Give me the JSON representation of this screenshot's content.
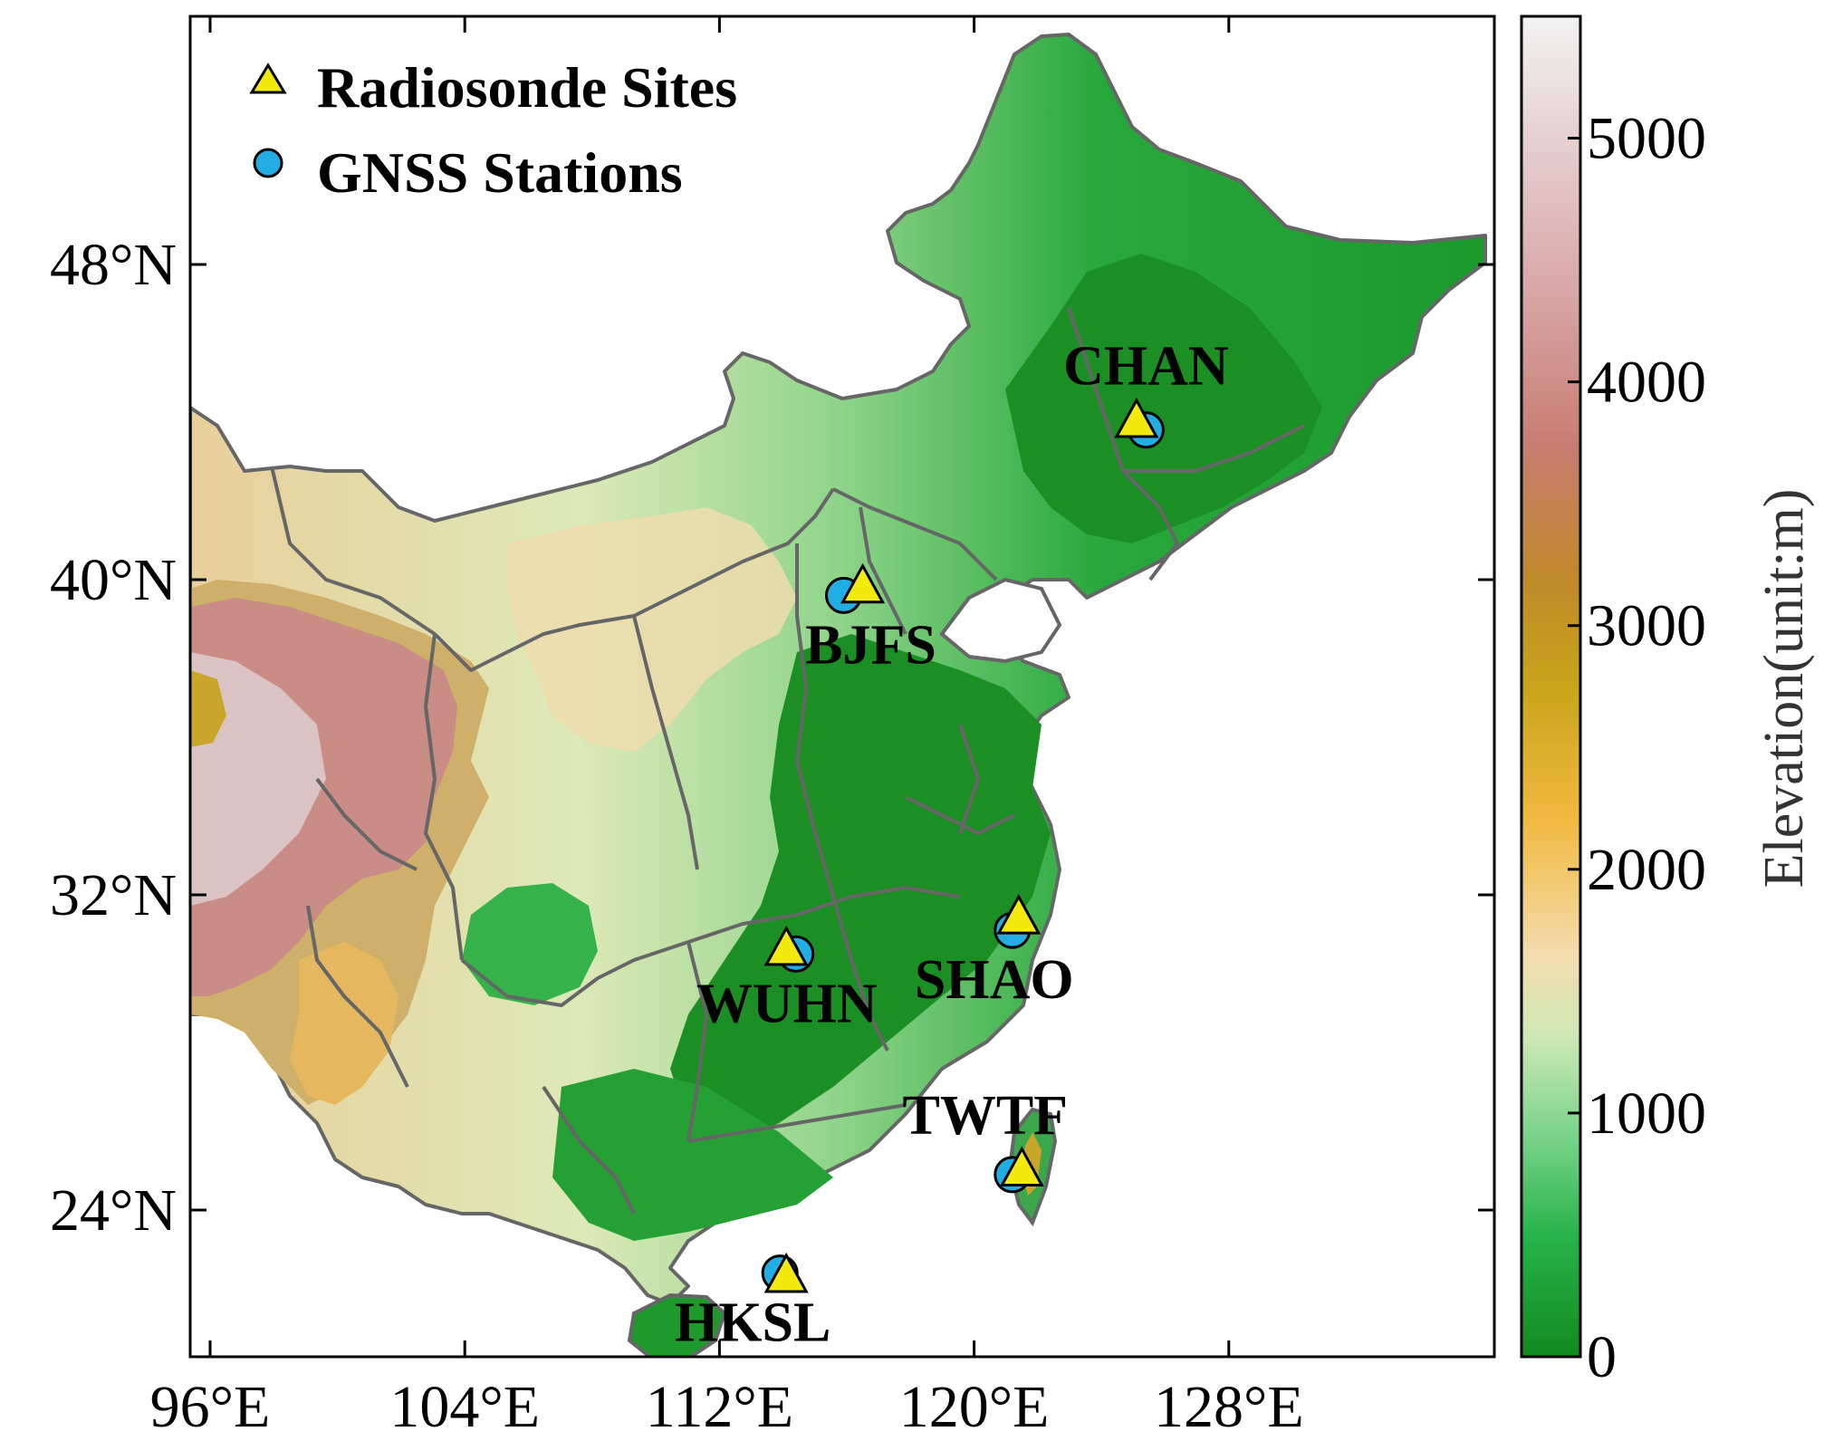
{
  "map": {
    "lon_range": [
      95,
      134
    ],
    "lat_range": [
      18,
      54
    ],
    "lon_ticks": [
      {
        "value": 96,
        "label": "96°E"
      },
      {
        "value": 104,
        "label": "104°E"
      },
      {
        "value": 112,
        "label": "112°E"
      },
      {
        "value": 120,
        "label": "120°E"
      },
      {
        "value": 128,
        "label": "128°E"
      }
    ],
    "lat_ticks": [
      {
        "value": 24,
        "label": "24°N"
      },
      {
        "value": 32,
        "label": "32°N"
      },
      {
        "value": 40,
        "label": "40°N"
      },
      {
        "value": 48,
        "label": "48°N"
      }
    ],
    "colors": {
      "low": "#128a1e",
      "mid_green": "#3fc46b",
      "light_green": "#b9e3a6",
      "tan": "#f1d7a7",
      "gold": "#c7a21f",
      "brown": "#b5803a",
      "rose": "#c98882",
      "snow": "#eeeeee",
      "border": "#666666",
      "triangle": "#f2ea0c",
      "circle": "#22aee4"
    }
  },
  "colorbar": {
    "title": "Elevation(unit:m)",
    "range": [
      0,
      5500
    ],
    "ticks": [
      {
        "value": 0,
        "label": "0"
      },
      {
        "value": 1000,
        "label": "1000"
      },
      {
        "value": 2000,
        "label": "2000"
      },
      {
        "value": 3000,
        "label": "3000"
      },
      {
        "value": 4000,
        "label": "4000"
      },
      {
        "value": 5000,
        "label": "5000"
      }
    ]
  },
  "legend": {
    "radiosonde": "Radiosonde Sites",
    "gnss": "GNSS Stations"
  },
  "stations": [
    {
      "name": "CHAN",
      "lon": 125.4,
      "lat": 43.8,
      "tri_lon": 125.1,
      "tri_lat": 44.0
    },
    {
      "name": "BJFS",
      "lon": 115.9,
      "lat": 39.6,
      "tri_lon": 116.5,
      "tri_lat": 39.8
    },
    {
      "name": "WUHN",
      "lon": 114.4,
      "lat": 30.5,
      "tri_lon": 114.1,
      "tri_lat": 30.6
    },
    {
      "name": "SHAO",
      "lon": 121.2,
      "lat": 31.1,
      "tri_lon": 121.4,
      "tri_lat": 31.4
    },
    {
      "name": "TWTF",
      "lon": 121.2,
      "lat": 24.9,
      "tri_lon": 121.5,
      "tri_lat": 25.0
    },
    {
      "name": "HKSL",
      "lon": 113.9,
      "lat": 22.4,
      "tri_lon": 114.1,
      "tri_lat": 22.3
    }
  ]
}
